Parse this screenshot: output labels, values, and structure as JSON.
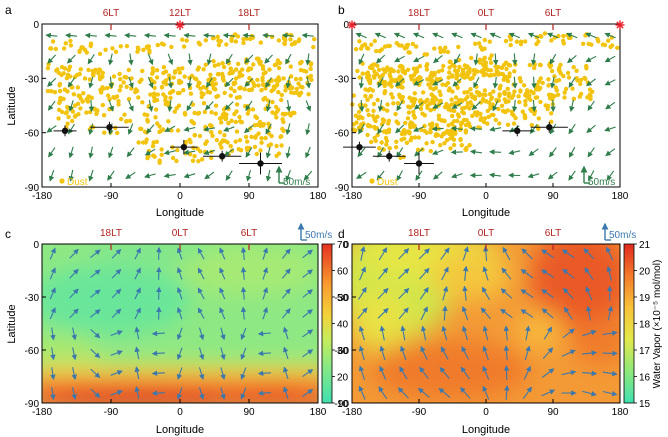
{
  "colors": {
    "dust": "#f2c40f",
    "wind_upper": "#2e7d4a",
    "wind_lower": "#3a78ad",
    "lt_label": "#b22222",
    "marker_star": "#e8202a",
    "scale_upper": "#2e7d4a",
    "scale_lower": "#3a78ad",
    "error_points": "#111111"
  },
  "chart_data": [
    {
      "panel": "a",
      "type": "scatter",
      "xlabel": "Longitude",
      "ylabel": "Latitude",
      "xlim": [
        -180,
        180
      ],
      "ylim": [
        -90,
        0
      ],
      "xticks": [
        "-180",
        "-90",
        "0",
        "90",
        "180"
      ],
      "yticks": [
        "0",
        "-30",
        "-60",
        "-90"
      ],
      "local_time_ticks": [
        {
          "label": "6LT",
          "lon": -90
        },
        {
          "label": "12LT",
          "lon": 0
        },
        {
          "label": "18LT",
          "lon": 90
        }
      ],
      "subsolar_marker_lon": 0,
      "dust_label": "Dust",
      "wind_scale_label": "50m/s",
      "points": [
        {
          "x": -150,
          "y": -59,
          "xerr": 15,
          "yerr": 3
        },
        {
          "x": -92,
          "y": -57,
          "xerr": 25,
          "yerr": 3
        },
        {
          "x": 5,
          "y": -68,
          "xerr": 18,
          "yerr": 4
        },
        {
          "x": 55,
          "y": -73,
          "xerr": 25,
          "yerr": 3
        },
        {
          "x": 105,
          "y": -77,
          "xerr": 28,
          "yerr": 6
        }
      ]
    },
    {
      "panel": "b",
      "type": "scatter",
      "xlabel": "Longitude",
      "ylabel": "",
      "xlim": [
        -180,
        180
      ],
      "ylim": [
        -90,
        0
      ],
      "xticks": [
        "-180",
        "-90",
        "0",
        "90",
        "180"
      ],
      "yticks": [
        "0",
        "-30",
        "-60",
        "-90"
      ],
      "local_time_ticks": [
        {
          "label": "18LT",
          "lon": -90
        },
        {
          "label": "0LT",
          "lon": 0
        },
        {
          "label": "6LT",
          "lon": 90
        }
      ],
      "subsolar_marker_lon": 180,
      "dust_label": "Dust",
      "wind_scale_label": "50m/s",
      "points": [
        {
          "x": -170,
          "y": -68,
          "xerr": 22,
          "yerr": 3
        },
        {
          "x": -130,
          "y": -73,
          "xerr": 22,
          "yerr": 3
        },
        {
          "x": -90,
          "y": -77,
          "xerr": 20,
          "yerr": 6
        },
        {
          "x": 42,
          "y": -59,
          "xerr": 20,
          "yerr": 3
        },
        {
          "x": 85,
          "y": -57,
          "xerr": 25,
          "yerr": 3
        }
      ]
    },
    {
      "panel": "c",
      "type": "heatmap",
      "xlabel": "Longitude",
      "ylabel": "Latitude",
      "xlim": [
        -180,
        180
      ],
      "ylim": [
        -90,
        0
      ],
      "xticks": [
        "-180",
        "-90",
        "0",
        "90",
        "180"
      ],
      "yticks": [
        "0",
        "-30",
        "-60",
        "-90"
      ],
      "local_time_ticks": [
        {
          "label": "18LT",
          "lon": -90
        },
        {
          "label": "0LT",
          "lon": 0
        },
        {
          "label": "6LT",
          "lon": 90
        }
      ],
      "wind_scale_label": "50m/s",
      "colorbar": {
        "ticks": [
          "70",
          "60",
          "50",
          "40",
          "30",
          "20",
          "10"
        ],
        "range": [
          10,
          70
        ]
      }
    },
    {
      "panel": "d",
      "type": "heatmap",
      "xlabel": "Longitude",
      "ylabel": "",
      "xlim": [
        -180,
        180
      ],
      "ylim": [
        -90,
        0
      ],
      "xticks": [
        "-180",
        "-90",
        "0",
        "90",
        "180"
      ],
      "yticks": [
        "0",
        "-30",
        "-60",
        "-90"
      ],
      "local_time_ticks": [
        {
          "label": "18LT",
          "lon": -90
        },
        {
          "label": "0LT",
          "lon": 0
        },
        {
          "label": "6LT",
          "lon": 90
        }
      ],
      "wind_scale_label": "50m/s",
      "colorbar": {
        "ticks": [
          "21",
          "20",
          "19",
          "18",
          "17",
          "16",
          "15"
        ],
        "range": [
          15,
          21
        ],
        "label": "Water Vapor (×10⁻⁵ mol/mol)"
      }
    }
  ]
}
